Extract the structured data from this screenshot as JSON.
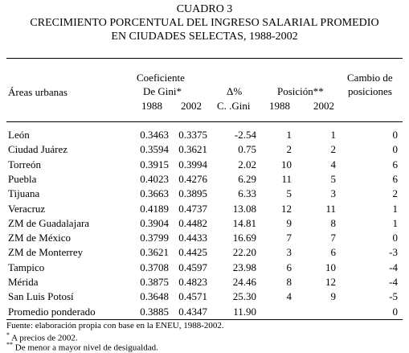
{
  "title": {
    "line1": "CUADRO 3",
    "line2": "CRECIMIENTO PORCENTUAL DEL INGRESO SALARIAL PROMEDIO",
    "line3": "EN CIUDADES SELECTAS, 1988-2002"
  },
  "headers": {
    "areas": "Áreas urbanas",
    "gini_top": "Coeficiente",
    "gini_mid": "De Gini*",
    "gini_1988": "1988",
    "gini_2002": "2002",
    "delta_top": "Δ%",
    "delta_bottom": "C. .Gini",
    "pos_top": "Posición**",
    "pos_1988": "1988",
    "pos_2002": "2002",
    "cambio_top": "Cambio de",
    "cambio_bottom": "posiciones"
  },
  "rows": [
    {
      "area": "León",
      "g1988": "0.3463",
      "g2002": "0.3375",
      "delta": "-2.54",
      "p1988": "1",
      "p2002": "1",
      "cambio": "0"
    },
    {
      "area": "Ciudad Juárez",
      "g1988": "0.3594",
      "g2002": "0.3621",
      "delta": "0.75",
      "p1988": "2",
      "p2002": "2",
      "cambio": "0"
    },
    {
      "area": "Torreón",
      "g1988": "0.3915",
      "g2002": "0.3994",
      "delta": "2.02",
      "p1988": "10",
      "p2002": "4",
      "cambio": "6"
    },
    {
      "area": "Puebla",
      "g1988": "0.4023",
      "g2002": "0.4276",
      "delta": "6.29",
      "p1988": "11",
      "p2002": "5",
      "cambio": "6"
    },
    {
      "area": "Tijuana",
      "g1988": "0.3663",
      "g2002": "0.3895",
      "delta": "6.33",
      "p1988": "5",
      "p2002": "3",
      "cambio": "2"
    },
    {
      "area": "Veracruz",
      "g1988": "0.4189",
      "g2002": "0.4737",
      "delta": "13.08",
      "p1988": "12",
      "p2002": "11",
      "cambio": "1"
    },
    {
      "area": "ZM de Guadalajara",
      "g1988": "0.3904",
      "g2002": "0.4482",
      "delta": "14.81",
      "p1988": "9",
      "p2002": "8",
      "cambio": "1"
    },
    {
      "area": "ZM de México",
      "g1988": "0.3799",
      "g2002": "0.4433",
      "delta": "16.69",
      "p1988": "7",
      "p2002": "7",
      "cambio": "0"
    },
    {
      "area": "ZM de Monterrey",
      "g1988": "0.3621",
      "g2002": "0.4425",
      "delta": "22.20",
      "p1988": "3",
      "p2002": "6",
      "cambio": "-3"
    },
    {
      "area": "Tampico",
      "g1988": "0.3708",
      "g2002": "0.4597",
      "delta": "23.98",
      "p1988": "6",
      "p2002": "10",
      "cambio": "-4"
    },
    {
      "area": "Mérida",
      "g1988": "0.3875",
      "g2002": "0.4823",
      "delta": "24.46",
      "p1988": "8",
      "p2002": "12",
      "cambio": "-4"
    },
    {
      "area": "San Luis Potosí",
      "g1988": "0.3648",
      "g2002": "0.4571",
      "delta": "25.30",
      "p1988": "4",
      "p2002": "9",
      "cambio": "-5"
    },
    {
      "area": "Promedio ponderado",
      "g1988": "0.3885",
      "g2002": "0.4347",
      "delta": "11.90",
      "p1988": "",
      "p2002": "",
      "cambio": "0"
    }
  ],
  "notes": {
    "source": "Fuente: elaboración propia con base en la ENEU, 1988-2002.",
    "note1_mark": "*",
    "note1": " A precios de 2002.",
    "note2_mark": "**",
    "note2": " De menor a mayor nivel de desigualdad."
  }
}
